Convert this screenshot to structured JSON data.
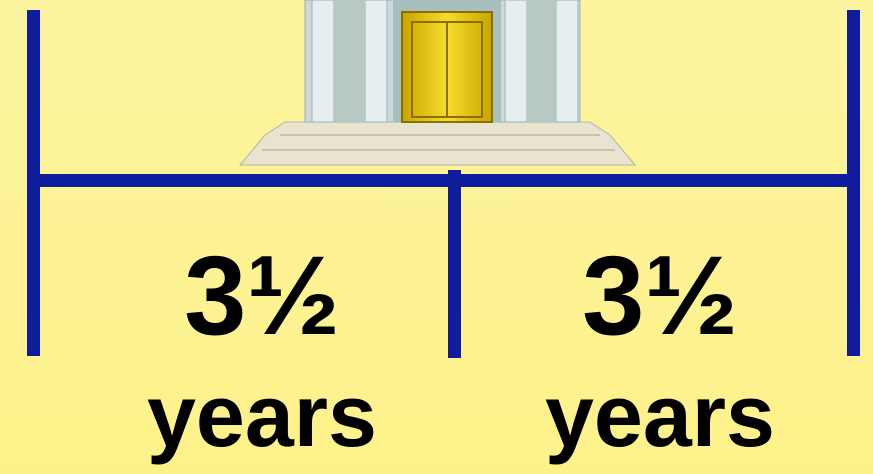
{
  "segments": [
    {
      "amount": "3½",
      "unit": "years"
    },
    {
      "amount": "3½",
      "unit": "years"
    }
  ]
}
